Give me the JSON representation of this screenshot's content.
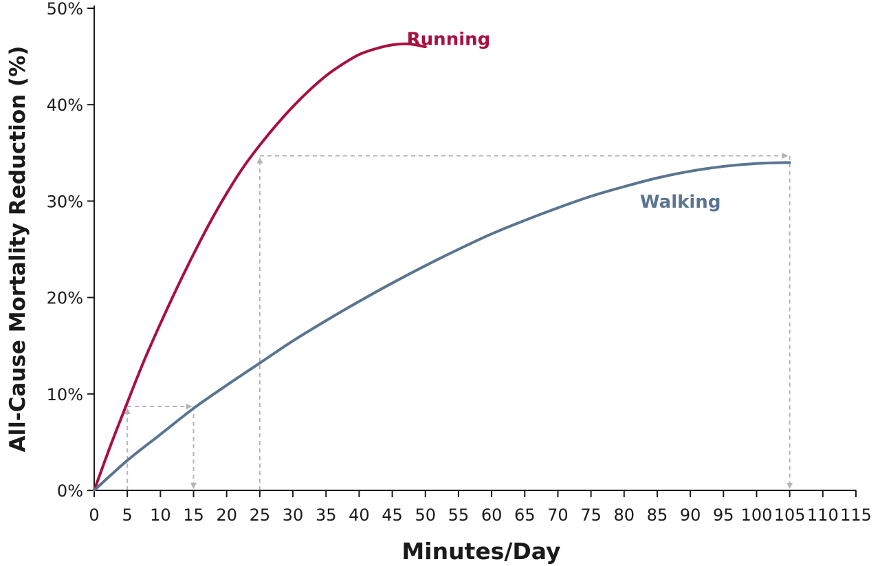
{
  "chart_data": {
    "type": "line",
    "title": "",
    "xlabel": "Minutes/Day",
    "ylabel": "All-Cause Mortality Reduction (%)",
    "xlim": [
      0,
      115
    ],
    "ylim": [
      0,
      50
    ],
    "grid": false,
    "x_ticks": [
      0,
      5,
      10,
      15,
      20,
      25,
      30,
      35,
      40,
      45,
      50,
      55,
      60,
      65,
      70,
      75,
      80,
      85,
      90,
      95,
      100,
      105,
      110,
      115
    ],
    "x_tick_labels": [
      "0",
      "5",
      "10",
      "15",
      "20",
      "25",
      "30",
      "35",
      "40",
      "45",
      "50",
      "55",
      "60",
      "65",
      "70",
      "75",
      "80",
      "85",
      "90",
      "95",
      "100",
      "105",
      "110",
      "115"
    ],
    "y_ticks": [
      0,
      10,
      20,
      30,
      40,
      50
    ],
    "y_tick_labels": [
      "0%",
      "10%",
      "20%",
      "30%",
      "40%",
      "50%"
    ],
    "series": [
      {
        "name": "Running",
        "color": "#a8103f",
        "label_at": [
          53.5,
          46.2
        ],
        "x": [
          0,
          2.5,
          5,
          7.5,
          10,
          12.5,
          15,
          17.5,
          20,
          22.5,
          25,
          27.5,
          30,
          32.5,
          35,
          37.5,
          40,
          42.5,
          45,
          47.5,
          50
        ],
        "values": [
          0,
          4.7,
          9.1,
          13.4,
          17.3,
          21.0,
          24.5,
          27.8,
          30.8,
          33.5,
          35.8,
          37.9,
          39.8,
          41.5,
          43.0,
          44.2,
          45.2,
          45.8,
          46.2,
          46.3,
          46.0
        ]
      },
      {
        "name": "Walking",
        "color": "#5a7590",
        "label_at": [
          88.5,
          29.3
        ],
        "x": [
          0,
          5,
          10,
          15,
          20,
          25,
          30,
          35,
          40,
          45,
          50,
          55,
          60,
          65,
          70,
          75,
          80,
          85,
          90,
          95,
          100,
          105
        ],
        "values": [
          0,
          3.1,
          5.8,
          8.5,
          10.9,
          13.2,
          15.5,
          17.6,
          19.6,
          21.5,
          23.3,
          25.0,
          26.6,
          28.0,
          29.3,
          30.5,
          31.5,
          32.4,
          33.1,
          33.6,
          33.9,
          34.0
        ]
      }
    ],
    "annotations": [
      {
        "type": "dashed-arrows",
        "color": "#b5b5b5",
        "from_x": 5,
        "to_x": 15,
        "y": 8.7,
        "note": "5 min running ≈ 15 min walking"
      },
      {
        "type": "dashed-arrows",
        "color": "#b5b5b5",
        "from_x": 25,
        "to_x": 105,
        "y": 34.7,
        "note": "25 min running ≈ 105 min walking"
      }
    ]
  }
}
